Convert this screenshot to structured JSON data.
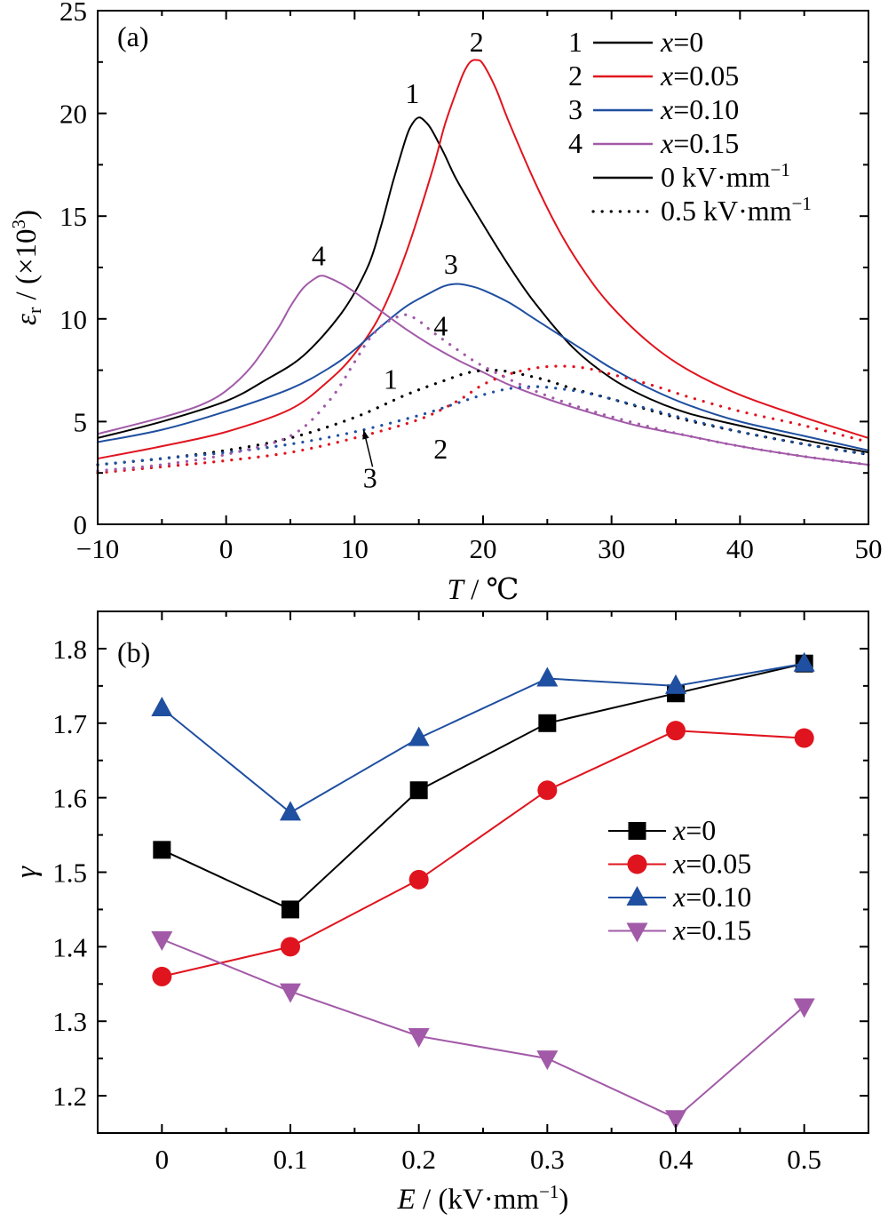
{
  "chart_data": [
    {
      "type": "line",
      "panel_label": "(a)",
      "xlabel": {
        "var": "T",
        "rest": " / ℃"
      },
      "ylabel": {
        "var": "ε",
        "sub": "r",
        "rest": " / (×10",
        "sup": "3",
        "end": ")"
      },
      "xlim": [
        -10,
        50
      ],
      "ylim": [
        0,
        25
      ],
      "xticks": [
        -10,
        0,
        10,
        20,
        30,
        40,
        50
      ],
      "yticks": [
        0,
        5,
        10,
        15,
        20,
        25
      ],
      "xtick_labels": [
        "−10",
        "0",
        "10",
        "20",
        "30",
        "40",
        "50"
      ],
      "ytick_labels": [
        "0",
        "5",
        "10",
        "15",
        "20",
        "25"
      ],
      "grid": false,
      "legend_position": "top-right",
      "legend": [
        {
          "num": "1",
          "var": "x",
          "val": "=0",
          "color": "#000000",
          "style": "solid"
        },
        {
          "num": "2",
          "var": "x",
          "val": "=0.05",
          "color": "#e0141e",
          "style": "solid"
        },
        {
          "num": "3",
          "var": "x",
          "val": "=0.10",
          "color": "#1f4fa0",
          "style": "solid"
        },
        {
          "num": "4",
          "var": "x",
          "val": "=0.15",
          "color": "#a25aa8",
          "style": "solid"
        },
        {
          "num": "",
          "text": "0 kV·mm",
          "sup": "−1",
          "color": "#000000",
          "style": "solid"
        },
        {
          "num": "",
          "text": "0.5 kV·mm",
          "sup": "−1",
          "color": "#000000",
          "style": "dotted"
        }
      ],
      "series": [
        {
          "name": "x=0, 0 kV·mm−1",
          "color": "#000000",
          "style": "solid",
          "x": [
            -10,
            -5,
            0,
            3,
            6,
            9,
            11,
            12,
            13,
            14,
            14.5,
            15,
            15.5,
            16,
            17,
            18,
            20,
            22,
            24,
            27,
            30,
            33,
            36,
            40,
            45,
            50
          ],
          "y": [
            4.2,
            5.0,
            6.0,
            7.0,
            8.2,
            10.3,
            12.5,
            14.4,
            16.7,
            18.8,
            19.5,
            19.8,
            19.6,
            19.2,
            18.0,
            16.7,
            14.6,
            12.6,
            10.8,
            8.6,
            7.1,
            6.1,
            5.4,
            4.8,
            4.1,
            3.5
          ]
        },
        {
          "name": "x=0.05, 0 kV·mm−1",
          "color": "#e0141e",
          "style": "solid",
          "x": [
            -10,
            -5,
            0,
            5,
            8,
            10,
            12,
            14,
            16,
            17,
            18,
            18.5,
            19,
            19.5,
            20,
            21,
            22,
            24,
            26,
            28,
            30,
            33,
            36,
            40,
            45,
            50
          ],
          "y": [
            3.2,
            3.8,
            4.5,
            5.6,
            7.0,
            8.3,
            10.2,
            13.2,
            17.1,
            19.4,
            21.2,
            22.0,
            22.5,
            22.6,
            22.4,
            21.2,
            19.6,
            16.7,
            14.2,
            12.2,
            10.6,
            8.8,
            7.5,
            6.3,
            5.2,
            4.2
          ]
        },
        {
          "name": "x=0.10, 0 kV·mm−1",
          "color": "#1f4fa0",
          "style": "solid",
          "x": [
            -10,
            -5,
            0,
            5,
            8,
            10,
            12,
            14,
            16,
            17,
            18,
            19,
            20,
            22,
            24,
            26,
            28,
            30,
            33,
            36,
            40,
            45,
            50
          ],
          "y": [
            4.0,
            4.6,
            5.5,
            6.6,
            7.6,
            8.5,
            9.6,
            10.6,
            11.3,
            11.6,
            11.7,
            11.6,
            11.4,
            10.8,
            10.0,
            9.2,
            8.4,
            7.6,
            6.6,
            5.8,
            5.0,
            4.3,
            3.6
          ]
        },
        {
          "name": "x=0.15, 0 kV·mm−1",
          "color": "#a25aa8",
          "style": "solid",
          "x": [
            -10,
            -5,
            -2,
            0,
            2,
            4,
            5,
            6,
            7,
            7.5,
            8,
            9,
            10,
            12,
            14,
            16,
            18,
            20,
            22,
            25,
            28,
            32,
            36,
            40,
            45,
            50
          ],
          "y": [
            4.4,
            5.2,
            5.8,
            6.5,
            7.7,
            9.5,
            10.6,
            11.5,
            12.0,
            12.1,
            12.0,
            11.7,
            11.3,
            10.4,
            9.5,
            8.7,
            8.0,
            7.4,
            6.8,
            6.1,
            5.5,
            4.8,
            4.3,
            3.8,
            3.3,
            2.9
          ]
        },
        {
          "name": "x=0, 0.5 kV·mm−1",
          "color": "#000000",
          "style": "dotted",
          "x": [
            -10,
            -5,
            0,
            5,
            10,
            14,
            17,
            19,
            21,
            23,
            25,
            27,
            30,
            35,
            40,
            45,
            50
          ],
          "y": [
            2.9,
            3.2,
            3.6,
            4.2,
            5.2,
            6.3,
            7.0,
            7.4,
            7.5,
            7.3,
            7.0,
            6.6,
            6.1,
            5.2,
            4.5,
            3.9,
            3.4
          ]
        },
        {
          "name": "x=0.05, 0.5 kV·mm−1",
          "color": "#e0141e",
          "style": "dotted",
          "x": [
            -10,
            -5,
            0,
            5,
            10,
            15,
            18,
            20,
            22,
            24,
            26,
            28,
            30,
            33,
            36,
            40,
            45,
            50
          ],
          "y": [
            2.5,
            2.8,
            3.1,
            3.5,
            4.2,
            5.1,
            6.0,
            6.8,
            7.3,
            7.6,
            7.7,
            7.6,
            7.3,
            6.8,
            6.2,
            5.5,
            4.8,
            4.0
          ]
        },
        {
          "name": "x=0.10, 0.5 kV·mm−1",
          "color": "#1f4fa0",
          "style": "dotted",
          "x": [
            -10,
            -5,
            0,
            5,
            10,
            15,
            18,
            20,
            22,
            24,
            26,
            28,
            30,
            33,
            36,
            40,
            45,
            50
          ],
          "y": [
            2.9,
            3.2,
            3.5,
            3.9,
            4.5,
            5.3,
            5.9,
            6.3,
            6.6,
            6.7,
            6.6,
            6.4,
            6.1,
            5.6,
            5.1,
            4.5,
            3.9,
            3.4
          ]
        },
        {
          "name": "x=0.15, 0.5 kV·mm−1",
          "color": "#a25aa8",
          "style": "dotted",
          "x": [
            -10,
            -5,
            0,
            5,
            8,
            10,
            11,
            12,
            13,
            14,
            15,
            16,
            18,
            20,
            24,
            28,
            32,
            36,
            40,
            45,
            50
          ],
          "y": [
            2.6,
            2.9,
            3.4,
            4.3,
            6.0,
            7.9,
            8.9,
            9.6,
            10.0,
            10.2,
            9.9,
            9.4,
            8.5,
            7.7,
            6.5,
            5.6,
            4.9,
            4.3,
            3.8,
            3.3,
            2.9
          ]
        }
      ],
      "curve_labels": [
        {
          "text": "1",
          "x": 14.5,
          "y": 20.5
        },
        {
          "text": "2",
          "x": 19.5,
          "y": 23.0
        },
        {
          "text": "3",
          "x": 17.5,
          "y": 12.2
        },
        {
          "text": "4",
          "x": 7.2,
          "y": 12.6
        },
        {
          "text": "4",
          "x": 16.7,
          "y": 9.2
        },
        {
          "text": "1",
          "x": 12.8,
          "y": 6.6
        },
        {
          "text": "2",
          "x": 16.7,
          "y": 3.2
        },
        {
          "text": "3",
          "x": 11.2,
          "y": 1.8
        }
      ],
      "annotation_arrow": {
        "from": [
          11.4,
          2.8
        ],
        "to": [
          10.7,
          4.6
        ]
      }
    },
    {
      "type": "line",
      "panel_label": "(b)",
      "xlabel": {
        "var": "E",
        "rest": " / (kV·mm",
        "sup": "−1",
        "end": ")"
      },
      "ylabel": {
        "var": "γ"
      },
      "xlim": [
        -0.05,
        0.55
      ],
      "ylim": [
        1.15,
        1.85
      ],
      "xticks": [
        0,
        0.1,
        0.2,
        0.3,
        0.4,
        0.5
      ],
      "yticks": [
        1.2,
        1.3,
        1.4,
        1.5,
        1.6,
        1.7,
        1.8
      ],
      "xtick_labels": [
        "0",
        "0.1",
        "0.2",
        "0.3",
        "0.4",
        "0.5"
      ],
      "ytick_labels": [
        "1.2",
        "1.3",
        "1.4",
        "1.5",
        "1.6",
        "1.7",
        "1.8"
      ],
      "grid": false,
      "legend_position": "center-right",
      "categories": [
        0,
        0.1,
        0.2,
        0.3,
        0.4,
        0.5
      ],
      "series": [
        {
          "var": "x",
          "val": "=0",
          "marker": "square",
          "color": "#000000",
          "line_color": "#000000",
          "values": [
            1.53,
            1.45,
            1.61,
            1.7,
            1.74,
            1.78
          ]
        },
        {
          "var": "x",
          "val": "=0.05",
          "marker": "circle",
          "color": "#e0141e",
          "line_color": "#e0141e",
          "values": [
            1.36,
            1.4,
            1.49,
            1.61,
            1.69,
            1.68
          ]
        },
        {
          "var": "x",
          "val": "=0.10",
          "marker": "triangle-up",
          "color": "#1f4fa0",
          "line_color": "#1f4fa0",
          "values": [
            1.72,
            1.58,
            1.68,
            1.76,
            1.75,
            1.78
          ]
        },
        {
          "var": "x",
          "val": "=0.15",
          "marker": "triangle-down",
          "color": "#a25aa8",
          "line_color": "#a25aa8",
          "values": [
            1.41,
            1.34,
            1.28,
            1.25,
            1.17,
            1.32
          ]
        }
      ]
    }
  ]
}
